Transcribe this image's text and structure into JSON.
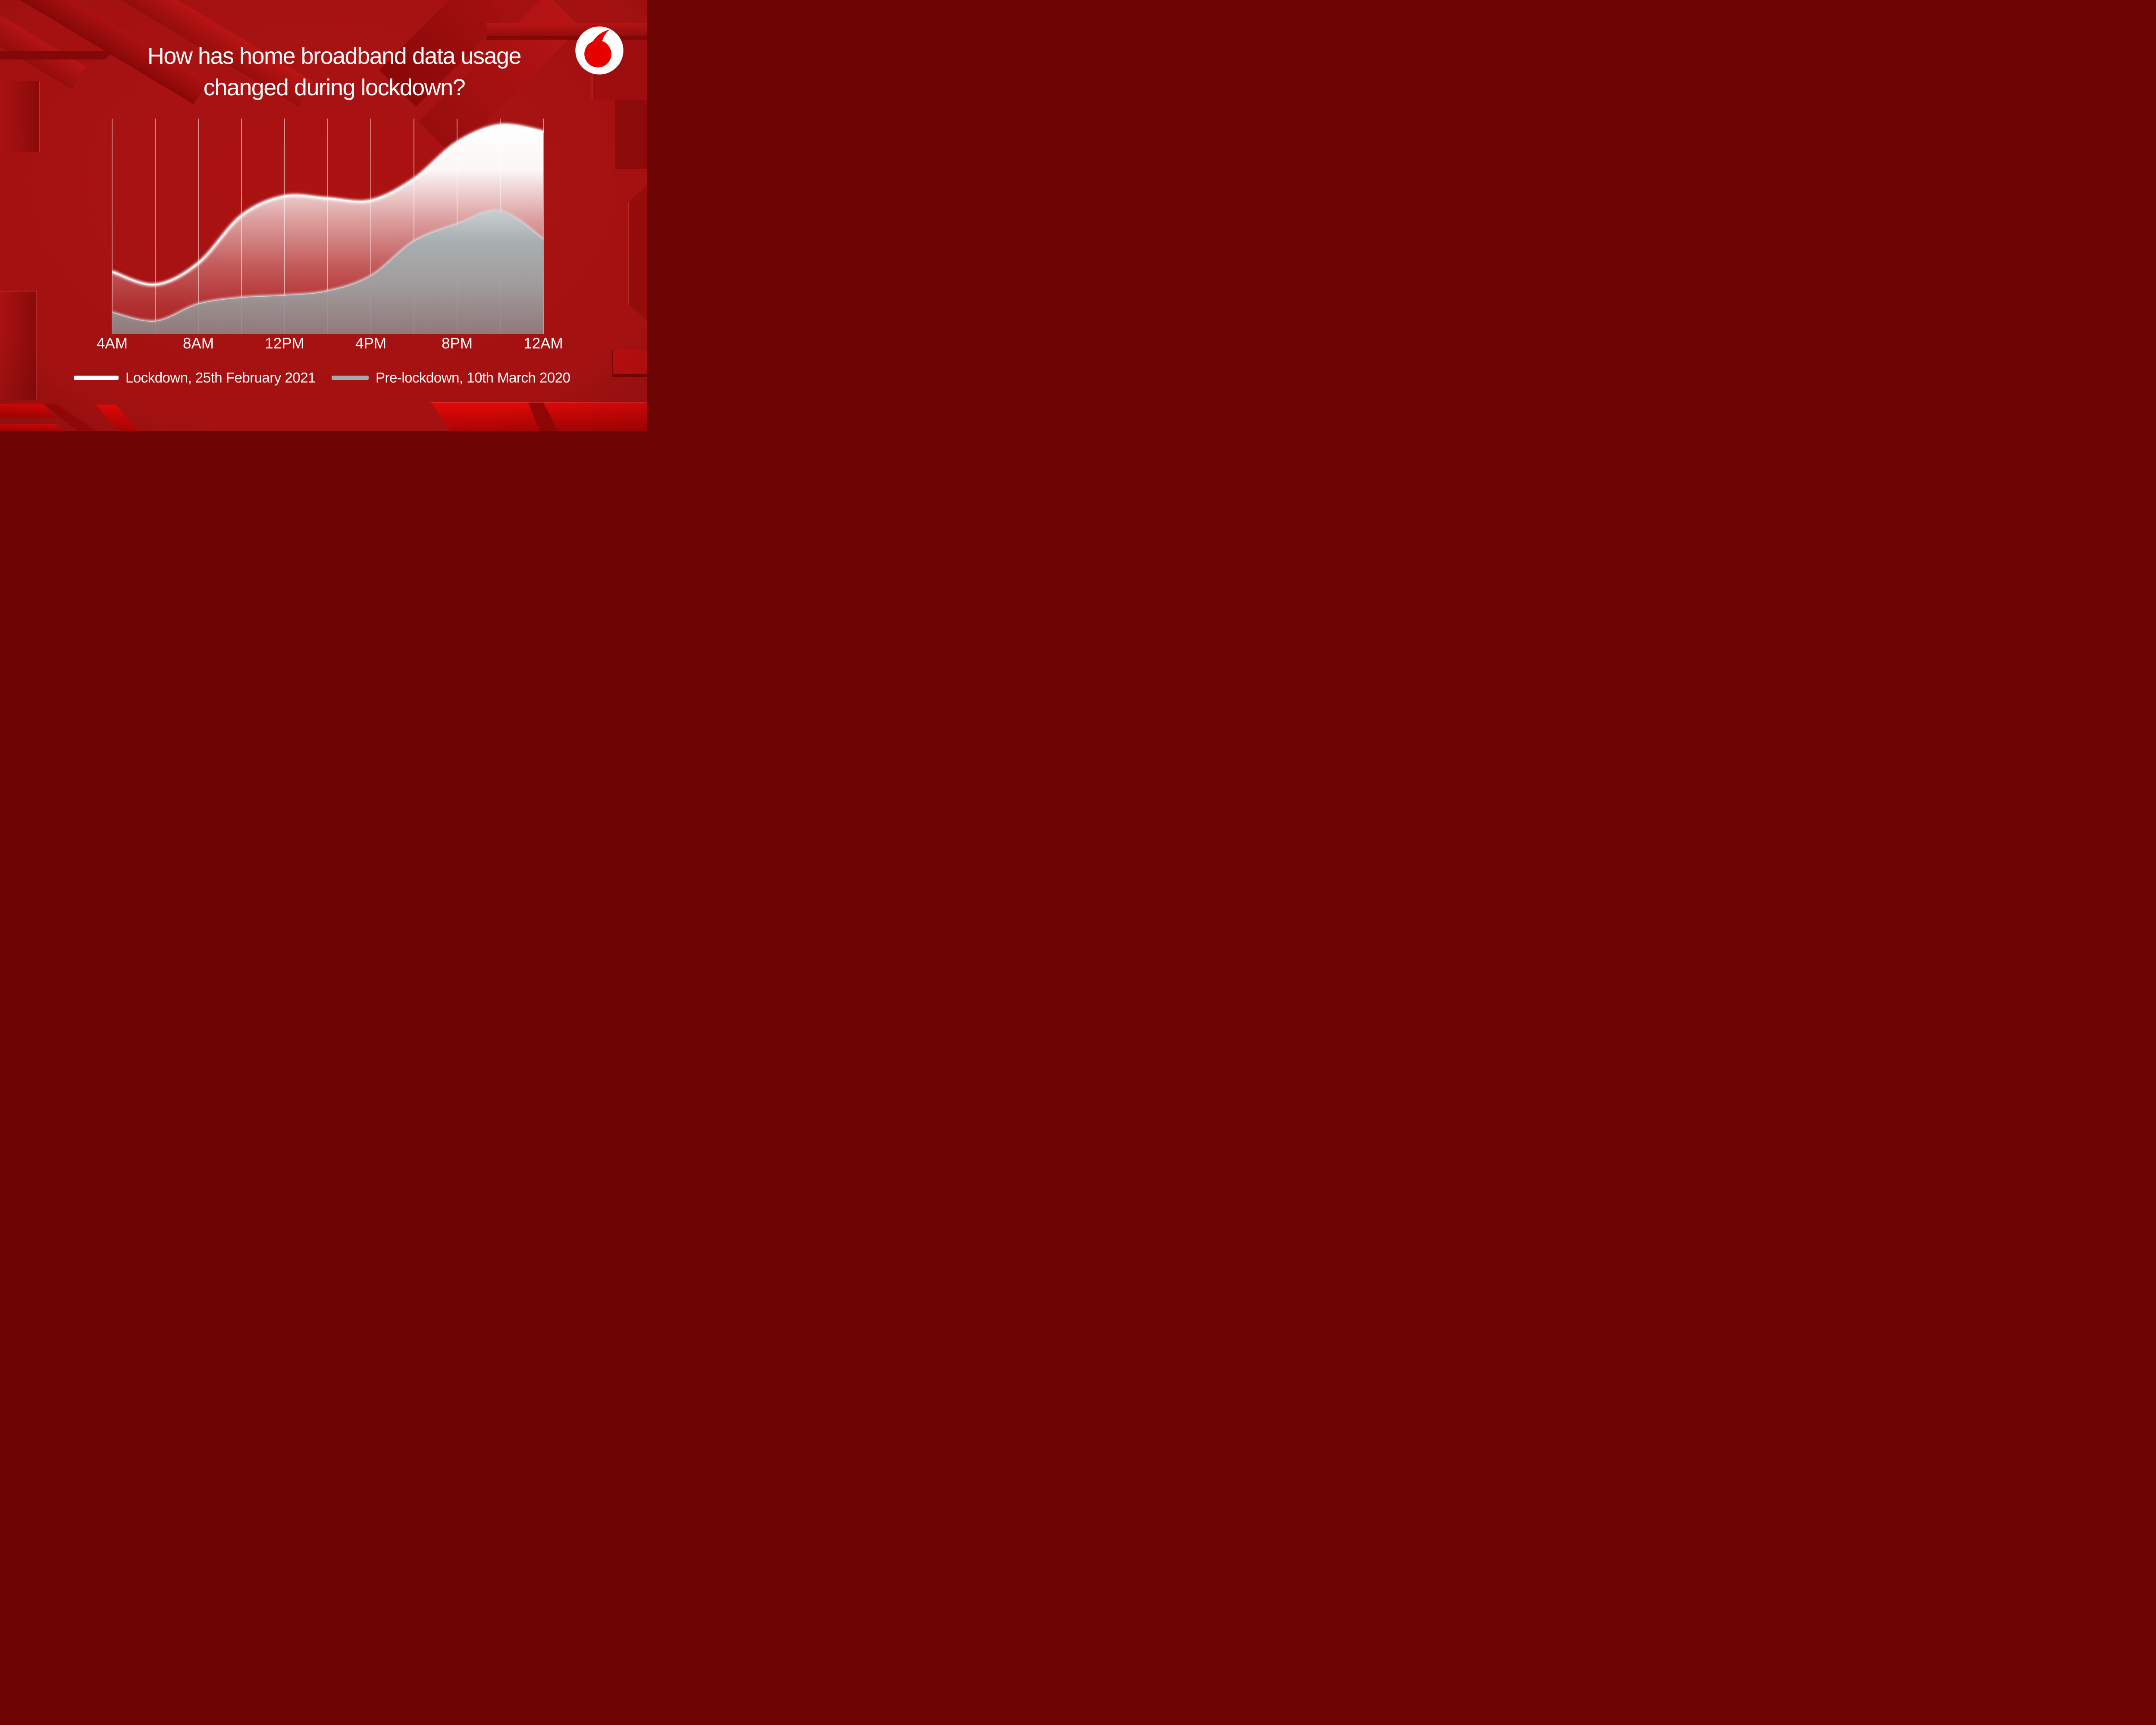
{
  "header": {
    "title_line1": "How has home broadband data usage",
    "title_line2": "changed during lockdown?"
  },
  "logo": {
    "name": "vodafone-speechmark",
    "brand_color": "#e60000"
  },
  "chart_data": {
    "type": "area",
    "title": "How has home broadband data usage changed during lockdown?",
    "x": [
      "4AM",
      "6AM",
      "8AM",
      "10AM",
      "12PM",
      "2PM",
      "4PM",
      "6PM",
      "8PM",
      "10PM",
      "12AM"
    ],
    "x_tick_labels_shown": [
      "4AM",
      "8AM",
      "12PM",
      "4PM",
      "8PM",
      "12AM"
    ],
    "label_every": 2,
    "xlabel": "",
    "ylabel": "",
    "y_axis_labels": "none",
    "ylim": [
      0,
      100
    ],
    "grid": "vertical",
    "legend_position": "bottom",
    "series": [
      {
        "name": "Lockdown, 25th February 2021",
        "color": "#ffffff",
        "values": [
          29,
          23,
          33,
          55,
          64,
          63,
          62,
          72,
          89,
          97,
          94
        ]
      },
      {
        "name": "Pre-lockdown, 10th March 2020",
        "color": "#a6abad",
        "values": [
          10,
          6,
          14,
          17,
          18,
          20,
          27,
          43,
          51,
          57,
          44
        ]
      }
    ]
  },
  "colors": {
    "background": "#ac1212",
    "brand_red": "#e60000",
    "gridline": "#ffffff",
    "text": "#ffffff"
  }
}
